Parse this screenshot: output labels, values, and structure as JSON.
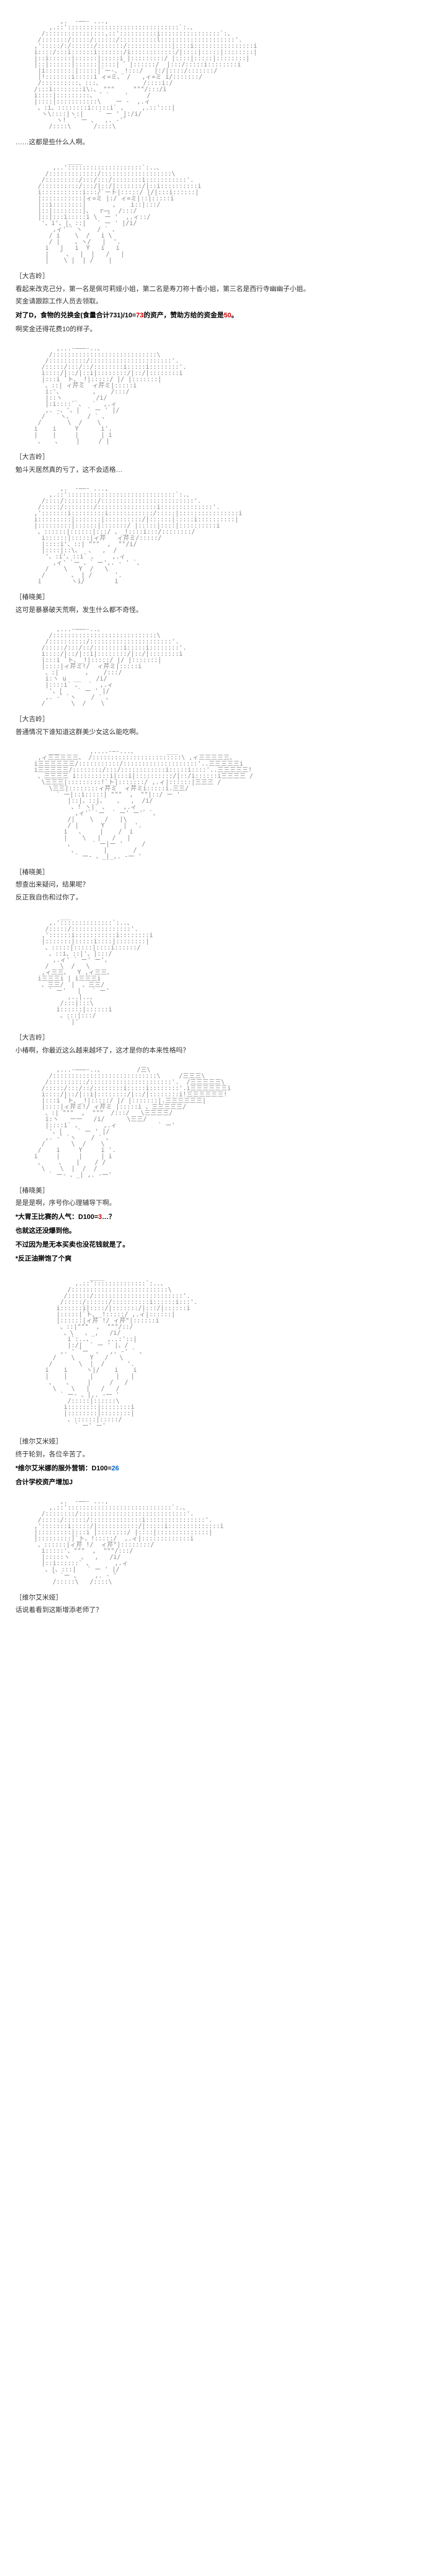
{
  "ascii_color": "#888888",
  "text_color": "#333333",
  "bold_color": "#000000",
  "red_color": "#cc0000",
  "blue_color": "#0066cc",
  "bg_color": "#ffffff",
  "font_size_text": 13,
  "font_size_ascii": 12,
  "sections": [
    {
      "ascii": "            ,.  -――- ...,\n         ,.::'::::::::::::::::::::::::::::::`:.、\n       /::::::::::::::::,::'::::::::::i::::::::::::::::`:、\n      /:::::::/:::::/::::::/::::::::::l::::::::::::::::::::'.\n     ,':::::/:/::::::/:::::::/::::::::::::|::::i::::::::::::::::i\n     i::::/:::i::::::i:::::::/i::::::::::::/|::::|:::::|::::::::|\n     |::i::::::|::::::|:::::i |:::::::::/ |::::|:::::|::::::::|\n     |::|::::::|::::::|::::| ゛|::::::/  |:::/:::::i::::::::i\n      |i::::::::|:::::|`ー-、_!:::/   |:/|::::/:::::::/\n      |!:::::::i:::::i ィ=ミ、 /   ,ィ=ミ i/:::::::/\n      /::::::::::、:::、           /::::i:/\n     /:::i::::::::i\\:、 \"\"\"     \"\"\"/:::/i\n     i::::|:::::::::、 ゛`    '     /\n     |::::|:::::::::::\\    ー ‐  ,.ィ\n      、:i、::::::::i:::::i` 、    ,.::':::|\n       ヽ\\::::|ヽ:|    ` ー ' |:/i/\n           ヽ!  ` ー 、  ,. -'゛\n         /::::\\      /::::\\",
      "speaker": "",
      "lines": [
        "……这都是些什么人啊。"
      ]
    },
    {
      "ascii": "              ____\n          ,..'::::::::::::::::::::`:..、\n        /:::::::::::::/:::::::::::::::::::\\\n       /:::::::::/:::/:::/::::::::i:::::::::::'.\n      /::::::::::/:::/|::/|:::::::/|::i::::::::::i\n      i:::::::::::i:::/`ート|:::::/ |/|:::i::::::|\n      |:::::::::::|ィ=ミ |:/ ィ=ミ|::|:::::i\n      |::i::::::::|       ,    i::|:::/\n      |::|::::::::|、  r―┐  /:::/\n      |::|:::i:::::i \\  ー '  ,.ィ::/\n       '、i'、|、::|   ` ー ' |/i/\n          ,ィ'`゛ヽ    / ` 、\n         / i    \\  /   i \\\n         / |    、ヽ/   |  '.\n        i   |   i  Y   i   i\n        |   ゛、  |  |   /   |\n        |    \\ |  | /    |",
      "speaker": "［大吉岭］",
      "lines": [
        "看起来改克己分，第一名是佩可莉娅小姐，第二名是寿刀祢十香小姐，第三名是西行寺幽幽子小姐。",
        "奖金请跟踪工作人员去领取。",
        {
          "bold": true,
          "parts": [
            {
              "t": "对了D，食物的兑换金"
            },
            {
              "t": "(食量合计731)/10="
            },
            {
              "t": "73",
              "color": "red"
            },
            {
              "t": "的资产，赞助方给的资金是"
            },
            {
              "t": "50",
              "color": "red"
            },
            {
              "t": "。"
            }
          ]
        },
        "啊奖金还得花费10的样子。"
      ]
    },
    {
      "ascii": "           ,...-―――-..、\n         /::::::::::::::::::::::::::::\\\n        /::::::::::/::::::::::::::::::::::'.\n       /:::::/:::/::/::::::::i:::::i::::::::'.\n       i::::/|::/|::i|::::::::/|::/|::::::::i\n       |:::i `ト、_!|:::::/ |/ |:::::::|\n        、::| ィ芹ミ  ィ芹ミ|:::::i\n        i:'、        ,    /:::/\n        |::ヽ   _     /i/\n        |:i::::` 、  `  ,.ィ\n        ,. -、'、|  ` ー ' |/\n       /   `ヽ、    / ` 、\n      /       \\  /    \\\n     i    i     Y      i'.\n     |    |     |      | i\n      、   、    |     / |",
      "speaker": "［大吉岭］",
      "lines": [
        "勉斗天居然真的亏了，这不会适格…"
      ]
    },
    {
      "ascii": "            ,.  -――- ...,\n         ,.::':::::::::::::::::::::::::::::`:.、\n       /::::/:::::::::/:::::::::::::::::::::::::'.\n      /:::::/::::::::/::::::::::::::::i::::::::::::::'.\n     ,':::::::i:::::::::i::::::::::::/:::::|::::::::::::::::i\n     i:::::::::|:::::::|::::::::::/|::::::|:::::i::::::::::|\n     |:::::::::|::::::|:::::::/ |:::::|::::|::::::::::i\n      、::::::|::::::|:::/ 、_!::::i:::/::::::::/\n       i::::::|:::::|ィ芹   ィ芹ミ/:::::/\n       |::::i'、::| \"\"\"  ,  \"\"/i/\n       |::::|::\\、  、  ,  /\n        '、:i'、::i` 、    ,.ィ\n          ,ィ' `ー 、` ー',. - ' `、\n        /    \\   Y  /   \\\n       /       、 | /      '.\n      i        ヽi/        i",
      "speaker": "［椿晓美］",
      "lines": [
        "这可是暴暴破天荒啊，发生什么都不奇怪。"
      ]
    },
    {
      "ascii": "           ,...-―――-..、\n         /::::::::::::::::::::::::::::\\\n        /::::::::::/::::::::::::::::::::::'.\n       /:::::/:::/::/::::::::i:::::i::::::::'.\n       i::::/|::/|::i|::::::::/|::/|::::::::i\n       |:::i `ト、_!|:::::/ |/ |:::::::|\n       |::::|ィ芹ミ!/  ィ芹ミ|:::::i\n        、:|       ,    /:::/\n        i:ヽ u  __    /i/\n        |::::i` 、  `  ,.ィ\n         '、|    ` ー ' |/\n        ,. -゛`ヽ    / ` 、\n       /       \\  /    \\",
      "speaker": "［大吉岭］",
      "lines": [
        "普通情况下谁知道这群美少女这么能吃啊。"
      ]
    },
    {
      "ascii": "         ___        ,....-―-...、        ___\n      ,ィ三三三三三、 /::::::::::::::::::::::::\\ ,ィ三三三三三、\n     i三三三三三三/:::::::::::/::::::::::::::::::::'..三三三三三i\n     i三三三三三/::::::::/:::/::::::::::::i:::::i::::'..三三三三三!\n      、三三三三 i:::::::::i|:::i|::::::::::/|::/i::::::i三三三三 /\n       \\三三三|:::::::::!`ト|:::::::/ ,.ィ|::::::|三三三 /\n         \\三三|::::::::ィ芹ミ  ィ芹ミi:::::i.三三/\n           ` ー|::i:::::| \"\"\"  ,  \"\"|::/ ー '\n              |::|、::|、   、  ,  /i/\n               、! ヽ|` 、    ,.ィ\n                ,ィ'゛`ー  ` ー' ー'゛`、\n              /|    \\   /   |\\\n              / |      Y     |  '.\n             i   、    |    /  i\n             |    \\   |   /   |\n              、     ` ー|ー '     /\n               、       |       /\n                ` ー- 、_|_,. -一 '",
      "speaker": "［椿晓美］",
      "lines": [
        "想查出来疑问，结果呢？",
        "反正我自伤和过你了。"
      ]
    },
    {
      "ascii": "            ___\n         ,.'::::::::::::::`:..、\n        /:::::/::::::::::::::::'.\n       ,'::::::i:::::::::::i::::::::i\n       |:::::::|:::::i::::|::::::::|\n        、:::::|:::::|::::i::::::/\n         、::i、::|'、|:::/\n          ,.ィ' ` ー' ー'、\n        /   \\  /   \\\n       ,ィ三三、  Y ,ィ三三、\n      i三三三i | i三三三i\n       、三三/  |  、三三/\n         ` ー'   |   ` ー'\n              ,..|..、\n            /:::|:::\\\n           i::::::|::::::i\n            、:::|:::/\n              `|'",
      "speaker": "［大吉岭］",
      "lines": [
        "小椿啊，你最近这么越来越坏了，这才是你的本来性格吗？"
      ]
    },
    {
      "ascii": "           ,...-―――-..、         /三\\\n         /::::::::::::::::::::::::::::\\     /三三三\\\n        /::::::::::/::::::::::::::::::::::'.  /三三三三三\\\n       /:::::/:::/::/::::::::i:::::i::::::::'.i三三三三三三i\n       i::::/|::/|::i|::::::::/|::/|::::::::i!三三三三三三!\n       |:::i `ト、_!|:::::/ |/ |:::::::|.三三三三三三|\n       |::::|ィ芹ミ!/ ィ芹ミ |:::::i 、三三三三三/\n        、:| \"\"\"  ,  \"\"\"  /:::/   \\三三三三/\n        i:ヽ   ー一   /i/      \\三三/\n        |::::i` 、      ,.ィ           ` ー'\n         '、|    ` ー ' |/\n        ,. -゛`ヽ    / ` 、\n       /       \\  /    \\\n      /    i     Y     i '.\n     i     |     |     | i\n      、    、   |    / /\n       \\    \\  |  /  /\n         ` ー- 、_| ,. -一'",
      "speaker": "［椿晓美］",
      "lines": [
        "是是是啊，序号你心理辅导下啊。",
        {
          "bold": true,
          "parts": [
            {
              "t": "*大胃王比赛的人气：D100="
            },
            {
              "t": "3",
              "color": "red"
            },
            {
              "t": "…？"
            }
          ]
        },
        {
          "bold": true,
          "parts": [
            {
              "t": "也就这还没爆到他。"
            }
          ]
        },
        {
          "bold": true,
          "parts": [
            {
              "t": "不过因为是无本买卖也没花钱就是了。"
            }
          ]
        },
        "",
        {
          "bold": true,
          "parts": [
            {
              "t": "*反正油擀饱了个爽"
            }
          ]
        }
      ]
    },
    {
      "ascii": "                    ____\n                ,.::'::::::::::::::`:..、\n              /::::::::::::::::::::::::::\\\n             /::::::/::::::::::::::::::::::::'.\n            /:::::/::::::/::::::::::i::::::i:::'.\n           i::::::i|::::/|:::::::/|:::/|::::::i\n           |:::::|`ト、_!:::::/ ,.ィ|::::::|\n           |::::::|ィ芹 !/ ィ芹\"|::::::i\n            、::|\"\"\"  ,  \"\"\"/::/\n             、\\   、_,   /i/\n              i`:..、    ,..:'::|\n              |:/|  ` ー ' |、/\n            ,. ' `ー  、  ,. -' ` 、\n          /    \\    Y   /   \\\n         /       \\  |  /      '.\n        i    i     ヽ|/    i    i\n        |    |      |      |   |\n         、   、    |     /   /\n          \\    \\   |   /   /\n            ` ー- 、|,. -一 '\n              /:::::|::::::\\\n             i::::::::|::::::::i\n             |::::::::|::::::::|\n              、::::::|:::::/\n                ` ー' ー'",
      "speaker": "［维尔艾米娅］",
      "lines": [
        "终于轮到，各位辛苦了。",
        {
          "bold": true,
          "parts": [
            {
              "t": "*维尔艾米娜的服外营销：D100="
            },
            {
              "t": "26",
              "color": "blue"
            }
          ]
        },
        {
          "bold": true,
          "parts": [
            {
              "t": "合计学校资产增加J"
            }
          ]
        }
      ]
    },
    {
      "ascii": "            ,.  -――- ...,\n         ,.::'::::::::::::::::::::::::::::`:.、\n       /::::::::/:::::::::::::::::::::::::::::'.\n      /:::::/::::::/::::::::::::::i::::::::::::::::'.\n     ,':::::::i:::::/|:::::::::::/|:::::i::::::::::::::i\n     |:::::::::|:::i |::::::::/ |::::|::::::::::::::|\n     |:::::::::|`ト、!:::::/  ,.ィ|:::::::::::::i\n      、::::::|ィ芹 !/  ィ芹\"|::::::::/\n       i:::::'、\"\"\"  ,  \"\"\"/:::/\n       |:::::ヽ   、  ,   /i/\n       |::i::::::` 、      ,.ィ\n        、|、:::|   ` ー ' |/\n          ` `ー 、    ,. - '\n          /:::::\\   /::::\\",
      "speaker": "［维尔艾米娅］",
      "lines": [
        "话说着看到这斯增添老师了？"
      ]
    }
  ]
}
